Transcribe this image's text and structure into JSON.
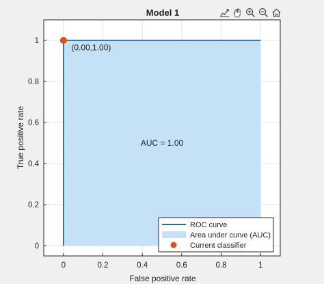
{
  "toolbar": {
    "items": [
      "data-tips-icon",
      "pan-hand-icon",
      "zoom-in-icon",
      "zoom-out-icon",
      "home-icon"
    ]
  },
  "chart_data": {
    "type": "line",
    "title": "Model 1",
    "xlabel": "False positive rate",
    "ylabel": "True positive rate",
    "xlim": [
      -0.1,
      1.1
    ],
    "ylim": [
      -0.05,
      1.1
    ],
    "xticks": [
      0,
      0.2,
      0.4,
      0.6,
      0.8,
      1
    ],
    "yticks": [
      0,
      0.2,
      0.4,
      0.6,
      0.8,
      1
    ],
    "xtick_labels": [
      "0",
      "0.2",
      "0.4",
      "0.6",
      "0.8",
      "1"
    ],
    "ytick_labels": [
      "0",
      "0.2",
      "0.4",
      "0.6",
      "0.8",
      "1"
    ],
    "grid": true,
    "series": [
      {
        "name": "ROC curve",
        "kind": "line",
        "color": "#1f6f9f",
        "x": [
          0,
          0,
          1
        ],
        "y": [
          0,
          1,
          1
        ]
      },
      {
        "name": "Area under curve (AUC)",
        "kind": "area",
        "color": "#c5e1f5",
        "x": [
          0,
          0,
          1,
          1
        ],
        "y": [
          0,
          1,
          1,
          0
        ]
      },
      {
        "name": "Current classifier",
        "kind": "scatter",
        "color": "#d95319",
        "x": [
          0
        ],
        "y": [
          1
        ]
      }
    ],
    "annotations": [
      {
        "text": "(0.00,1.00)",
        "x": 0.04,
        "y": 0.965
      },
      {
        "text": "AUC = 1.00",
        "x": 0.5,
        "y": 0.5
      }
    ],
    "legend": {
      "placement": "bottom-right",
      "entries": [
        "ROC curve",
        "Area under curve (AUC)",
        "Current classifier"
      ]
    }
  }
}
